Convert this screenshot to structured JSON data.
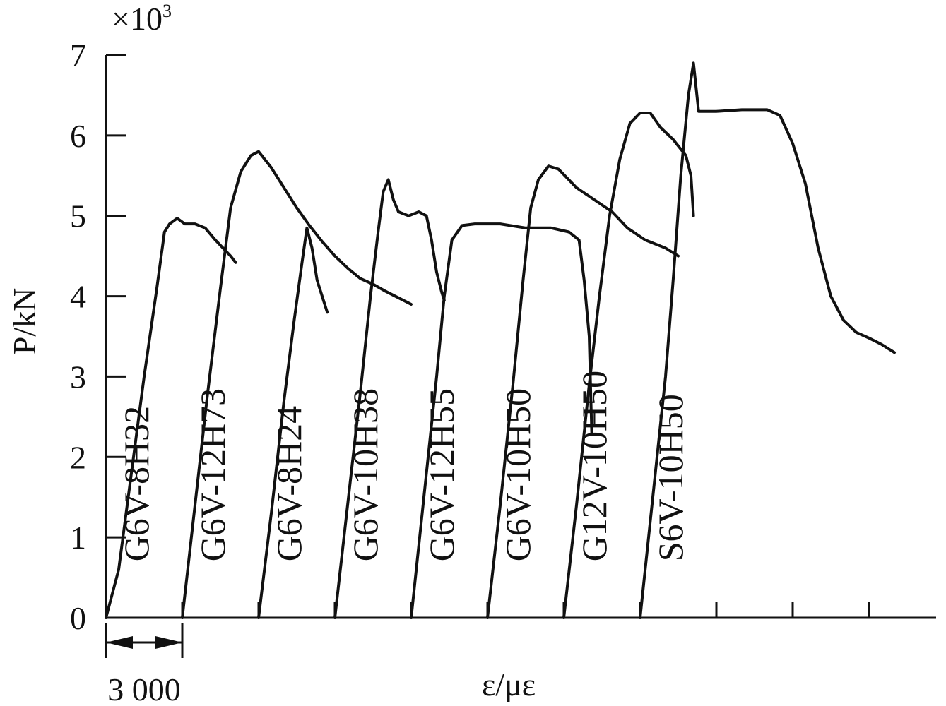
{
  "chart_data": {
    "type": "line",
    "title": "",
    "xlabel": "ε/με",
    "ylabel": "P/kN",
    "y_multiplier": "×10",
    "y_multiplier_exp": "3",
    "ylim": [
      0,
      7
    ],
    "y_ticks": [
      "0",
      "1",
      "2",
      "3",
      "4",
      "5",
      "6",
      "7"
    ],
    "x_scale_bar_label": "3 000",
    "x_scale_bar_value": 3000,
    "xlim": [
      0,
      33000
    ],
    "series": [
      {
        "name": "G6V-8H32",
        "values": [
          [
            0,
            0
          ],
          [
            500,
            0.6
          ],
          [
            1000,
            1.8
          ],
          [
            1500,
            3.0
          ],
          [
            2000,
            4.1
          ],
          [
            2300,
            4.8
          ],
          [
            2500,
            4.9
          ],
          [
            2800,
            4.97
          ],
          [
            3100,
            4.9
          ],
          [
            3500,
            4.9
          ],
          [
            3900,
            4.85
          ],
          [
            4300,
            4.7
          ],
          [
            4600,
            4.6
          ],
          [
            4900,
            4.5
          ],
          [
            5100,
            4.42
          ]
        ]
      },
      {
        "name": "G6V-12H73",
        "values": [
          [
            3000,
            0
          ],
          [
            3500,
            1.4
          ],
          [
            4000,
            2.8
          ],
          [
            4500,
            4.1
          ],
          [
            4900,
            5.1
          ],
          [
            5300,
            5.55
          ],
          [
            5700,
            5.75
          ],
          [
            6000,
            5.8
          ],
          [
            6500,
            5.6
          ],
          [
            7000,
            5.35
          ],
          [
            7500,
            5.1
          ],
          [
            8000,
            4.88
          ],
          [
            8500,
            4.68
          ],
          [
            9000,
            4.5
          ],
          [
            9500,
            4.35
          ],
          [
            10000,
            4.22
          ],
          [
            10500,
            4.15
          ],
          [
            11000,
            4.06
          ],
          [
            11500,
            3.98
          ],
          [
            12000,
            3.9
          ]
        ]
      },
      {
        "name": "G6V-8H24",
        "values": [
          [
            6000,
            0
          ],
          [
            6500,
            1.3
          ],
          [
            7000,
            2.7
          ],
          [
            7400,
            3.7
          ],
          [
            7700,
            4.4
          ],
          [
            7900,
            4.85
          ],
          [
            8100,
            4.6
          ],
          [
            8300,
            4.2
          ],
          [
            8500,
            4.0
          ],
          [
            8700,
            3.8
          ]
        ]
      },
      {
        "name": "G6V-10H38",
        "values": [
          [
            9000,
            0
          ],
          [
            9500,
            1.4
          ],
          [
            10000,
            2.8
          ],
          [
            10400,
            4.0
          ],
          [
            10700,
            4.8
          ],
          [
            10900,
            5.3
          ],
          [
            11100,
            5.45
          ],
          [
            11300,
            5.2
          ],
          [
            11500,
            5.05
          ],
          [
            11900,
            5.0
          ],
          [
            12300,
            5.05
          ],
          [
            12600,
            5.0
          ],
          [
            12800,
            4.7
          ],
          [
            13000,
            4.3
          ],
          [
            13200,
            4.05
          ],
          [
            13300,
            3.95
          ]
        ]
      },
      {
        "name": "G6V-12H55",
        "values": [
          [
            12000,
            0
          ],
          [
            12500,
            1.5
          ],
          [
            13000,
            3.0
          ],
          [
            13300,
            4.0
          ],
          [
            13600,
            4.7
          ],
          [
            14000,
            4.88
          ],
          [
            14500,
            4.9
          ],
          [
            15500,
            4.9
          ],
          [
            16500,
            4.85
          ],
          [
            17500,
            4.85
          ],
          [
            18200,
            4.8
          ],
          [
            18600,
            4.7
          ],
          [
            18800,
            4.2
          ],
          [
            19000,
            3.5
          ],
          [
            19100,
            2.3
          ]
        ]
      },
      {
        "name": "G6V-10H50",
        "values": [
          [
            15000,
            0
          ],
          [
            15500,
            1.4
          ],
          [
            16000,
            2.9
          ],
          [
            16400,
            4.2
          ],
          [
            16700,
            5.1
          ],
          [
            17000,
            5.45
          ],
          [
            17400,
            5.62
          ],
          [
            17800,
            5.58
          ],
          [
            18500,
            5.35
          ],
          [
            19200,
            5.2
          ],
          [
            19900,
            5.05
          ],
          [
            20500,
            4.85
          ],
          [
            21200,
            4.7
          ],
          [
            22000,
            4.6
          ],
          [
            22500,
            4.5
          ]
        ]
      },
      {
        "name": "G12V-10H50",
        "values": [
          [
            18000,
            0
          ],
          [
            18500,
            1.4
          ],
          [
            19000,
            2.9
          ],
          [
            19400,
            4.0
          ],
          [
            19800,
            5.0
          ],
          [
            20200,
            5.7
          ],
          [
            20600,
            6.15
          ],
          [
            21000,
            6.28
          ],
          [
            21400,
            6.28
          ],
          [
            21800,
            6.1
          ],
          [
            22300,
            5.95
          ],
          [
            22800,
            5.75
          ],
          [
            23000,
            5.5
          ],
          [
            23100,
            5.0
          ]
        ]
      },
      {
        "name": "S6V-10H50",
        "values": [
          [
            21000,
            0
          ],
          [
            21500,
            1.5
          ],
          [
            22000,
            3.0
          ],
          [
            22300,
            4.2
          ],
          [
            22600,
            5.5
          ],
          [
            22900,
            6.5
          ],
          [
            23100,
            6.9
          ],
          [
            23300,
            6.3
          ],
          [
            24000,
            6.3
          ],
          [
            25000,
            6.32
          ],
          [
            26000,
            6.32
          ],
          [
            26500,
            6.25
          ],
          [
            27000,
            5.9
          ],
          [
            27500,
            5.4
          ],
          [
            28000,
            4.6
          ],
          [
            28500,
            4.0
          ],
          [
            29000,
            3.7
          ],
          [
            29500,
            3.55
          ],
          [
            30000,
            3.48
          ],
          [
            30500,
            3.4
          ],
          [
            31000,
            3.3
          ]
        ]
      }
    ]
  }
}
